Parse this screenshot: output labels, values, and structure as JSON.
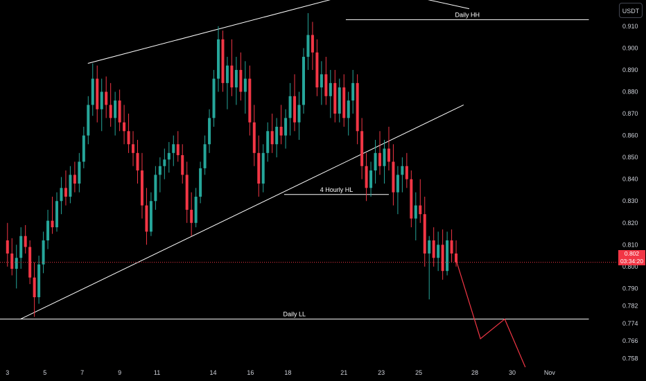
{
  "chart_data": {
    "type": "candlestick",
    "title": "",
    "currency_button": "USDT",
    "last_price": {
      "value": 0.802,
      "label": "0.802",
      "countdown": "03:34:20",
      "color": "#f23645"
    },
    "colors": {
      "up": "#26a69a",
      "down": "#f23645",
      "line": "#ffffff",
      "background": "#000000"
    },
    "y_axis": {
      "range": [
        0.754,
        0.922
      ],
      "ticks": [
        0.758,
        0.766,
        0.774,
        0.782,
        0.79,
        0.8,
        0.81,
        0.82,
        0.83,
        0.84,
        0.85,
        0.86,
        0.87,
        0.88,
        0.89,
        0.9,
        0.91
      ],
      "tick_labels": [
        "0.758",
        "0.766",
        "0.774",
        "0.782",
        "0.790",
        "0.800",
        "0.810",
        "0.820",
        "0.830",
        "0.840",
        "0.850",
        "0.860",
        "0.870",
        "0.880",
        "0.890",
        "0.900",
        "0.910"
      ]
    },
    "x_axis": {
      "range": [
        2.6,
        35.6
      ],
      "ticks": [
        3,
        5,
        7,
        9,
        11,
        14,
        16,
        18,
        21,
        23,
        25,
        28,
        30,
        32
      ],
      "tick_labels": [
        "3",
        "5",
        "7",
        "9",
        "11",
        "14",
        "16",
        "18",
        "21",
        "23",
        "25",
        "28",
        "30",
        "Nov"
      ]
    },
    "grid": false,
    "trend_lines": [
      {
        "name": "channel-upper",
        "points": [
          [
            7.3,
            0.893
          ],
          [
            21.1,
            0.924
          ]
        ]
      },
      {
        "name": "channel-upper-ext",
        "points": [
          [
            24.5,
            0.924
          ],
          [
            27.7,
            0.918
          ]
        ]
      },
      {
        "name": "channel-lower",
        "points": [
          [
            3.7,
            0.776
          ],
          [
            27.4,
            0.874
          ]
        ]
      }
    ],
    "levels": [
      {
        "label": "Daily HH",
        "value": 0.913,
        "from": 21.1,
        "to": 34.1
      },
      {
        "label": "4 Hourly HL",
        "value": 0.833,
        "from": 17.8,
        "to": 23.4
      },
      {
        "label": "Daily LL",
        "value": 0.776,
        "from": 2.6,
        "to": 34.1
      }
    ],
    "projection": [
      [
        27.0,
        0.803
      ],
      [
        28.3,
        0.767
      ],
      [
        29.6,
        0.776
      ],
      [
        30.7,
        0.754
      ]
    ],
    "candles": [
      [
        0.812,
        0.82,
        0.8,
        0.806
      ],
      [
        0.806,
        0.813,
        0.796,
        0.799
      ],
      [
        0.799,
        0.81,
        0.79,
        0.804
      ],
      [
        0.804,
        0.818,
        0.799,
        0.814
      ],
      [
        0.814,
        0.819,
        0.806,
        0.809
      ],
      [
        0.809,
        0.812,
        0.792,
        0.795
      ],
      [
        0.795,
        0.802,
        0.777,
        0.786
      ],
      [
        0.786,
        0.805,
        0.783,
        0.801
      ],
      [
        0.801,
        0.816,
        0.797,
        0.812
      ],
      [
        0.812,
        0.826,
        0.808,
        0.821
      ],
      [
        0.821,
        0.832,
        0.815,
        0.818
      ],
      [
        0.818,
        0.834,
        0.816,
        0.83
      ],
      [
        0.83,
        0.841,
        0.824,
        0.836
      ],
      [
        0.836,
        0.844,
        0.828,
        0.832
      ],
      [
        0.832,
        0.846,
        0.829,
        0.842
      ],
      [
        0.842,
        0.848,
        0.834,
        0.838
      ],
      [
        0.838,
        0.852,
        0.834,
        0.848
      ],
      [
        0.848,
        0.864,
        0.845,
        0.86
      ],
      [
        0.86,
        0.878,
        0.856,
        0.874
      ],
      [
        0.874,
        0.893,
        0.869,
        0.886
      ],
      [
        0.886,
        0.892,
        0.866,
        0.872
      ],
      [
        0.872,
        0.886,
        0.862,
        0.88
      ],
      [
        0.88,
        0.887,
        0.868,
        0.874
      ],
      [
        0.874,
        0.884,
        0.864,
        0.868
      ],
      [
        0.868,
        0.88,
        0.86,
        0.876
      ],
      [
        0.876,
        0.881,
        0.862,
        0.866
      ],
      [
        0.866,
        0.874,
        0.856,
        0.862
      ],
      [
        0.862,
        0.87,
        0.852,
        0.856
      ],
      [
        0.856,
        0.862,
        0.846,
        0.852
      ],
      [
        0.852,
        0.858,
        0.838,
        0.844
      ],
      [
        0.844,
        0.852,
        0.822,
        0.828
      ],
      [
        0.828,
        0.836,
        0.81,
        0.816
      ],
      [
        0.816,
        0.834,
        0.814,
        0.83
      ],
      [
        0.83,
        0.846,
        0.826,
        0.842
      ],
      [
        0.842,
        0.85,
        0.834,
        0.846
      ],
      [
        0.846,
        0.854,
        0.84,
        0.849
      ],
      [
        0.849,
        0.857,
        0.843,
        0.852
      ],
      [
        0.852,
        0.86,
        0.846,
        0.856
      ],
      [
        0.856,
        0.862,
        0.848,
        0.851
      ],
      [
        0.851,
        0.856,
        0.838,
        0.842
      ],
      [
        0.842,
        0.848,
        0.82,
        0.826
      ],
      [
        0.826,
        0.834,
        0.814,
        0.82
      ],
      [
        0.82,
        0.836,
        0.818,
        0.832
      ],
      [
        0.832,
        0.848,
        0.829,
        0.845
      ],
      [
        0.845,
        0.86,
        0.842,
        0.856
      ],
      [
        0.856,
        0.872,
        0.852,
        0.868
      ],
      [
        0.868,
        0.89,
        0.864,
        0.886
      ],
      [
        0.886,
        0.91,
        0.88,
        0.904
      ],
      [
        0.904,
        0.908,
        0.88,
        0.884
      ],
      [
        0.884,
        0.896,
        0.872,
        0.892
      ],
      [
        0.892,
        0.904,
        0.878,
        0.882
      ],
      [
        0.882,
        0.896,
        0.874,
        0.89
      ],
      [
        0.89,
        0.898,
        0.876,
        0.88
      ],
      [
        0.88,
        0.894,
        0.87,
        0.886
      ],
      [
        0.886,
        0.892,
        0.86,
        0.866
      ],
      [
        0.866,
        0.874,
        0.846,
        0.852
      ],
      [
        0.852,
        0.86,
        0.832,
        0.838
      ],
      [
        0.838,
        0.856,
        0.834,
        0.852
      ],
      [
        0.852,
        0.866,
        0.848,
        0.862
      ],
      [
        0.862,
        0.87,
        0.852,
        0.856
      ],
      [
        0.856,
        0.868,
        0.85,
        0.864
      ],
      [
        0.864,
        0.874,
        0.856,
        0.86
      ],
      [
        0.86,
        0.872,
        0.854,
        0.868
      ],
      [
        0.868,
        0.884,
        0.86,
        0.878
      ],
      [
        0.878,
        0.888,
        0.862,
        0.866
      ],
      [
        0.866,
        0.88,
        0.858,
        0.874
      ],
      [
        0.874,
        0.9,
        0.87,
        0.896
      ],
      [
        0.896,
        0.916,
        0.89,
        0.906
      ],
      [
        0.906,
        0.912,
        0.89,
        0.898
      ],
      [
        0.898,
        0.904,
        0.878,
        0.882
      ],
      [
        0.882,
        0.894,
        0.874,
        0.888
      ],
      [
        0.888,
        0.896,
        0.874,
        0.878
      ],
      [
        0.878,
        0.89,
        0.868,
        0.884
      ],
      [
        0.884,
        0.89,
        0.866,
        0.87
      ],
      [
        0.87,
        0.886,
        0.866,
        0.882
      ],
      [
        0.882,
        0.888,
        0.864,
        0.868
      ],
      [
        0.868,
        0.88,
        0.86,
        0.876
      ],
      [
        0.876,
        0.89,
        0.87,
        0.884
      ],
      [
        0.884,
        0.888,
        0.856,
        0.862
      ],
      [
        0.862,
        0.868,
        0.84,
        0.846
      ],
      [
        0.846,
        0.852,
        0.83,
        0.836
      ],
      [
        0.836,
        0.848,
        0.832,
        0.844
      ],
      [
        0.844,
        0.858,
        0.838,
        0.852
      ],
      [
        0.852,
        0.862,
        0.842,
        0.846
      ],
      [
        0.846,
        0.858,
        0.838,
        0.854
      ],
      [
        0.854,
        0.864,
        0.844,
        0.848
      ],
      [
        0.848,
        0.856,
        0.828,
        0.834
      ],
      [
        0.834,
        0.846,
        0.824,
        0.842
      ],
      [
        0.842,
        0.85,
        0.834,
        0.846
      ],
      [
        0.846,
        0.852,
        0.836,
        0.84
      ],
      [
        0.84,
        0.844,
        0.818,
        0.822
      ],
      [
        0.822,
        0.834,
        0.812,
        0.828
      ],
      [
        0.828,
        0.84,
        0.82,
        0.824
      ],
      [
        0.824,
        0.832,
        0.8,
        0.806
      ],
      [
        0.806,
        0.814,
        0.785,
        0.812
      ],
      [
        0.812,
        0.818,
        0.8,
        0.804
      ],
      [
        0.804,
        0.816,
        0.798,
        0.81
      ],
      [
        0.81,
        0.817,
        0.794,
        0.798
      ],
      [
        0.798,
        0.816,
        0.796,
        0.812
      ],
      [
        0.812,
        0.817,
        0.802,
        0.806
      ],
      [
        0.806,
        0.812,
        0.8,
        0.802
      ]
    ]
  }
}
